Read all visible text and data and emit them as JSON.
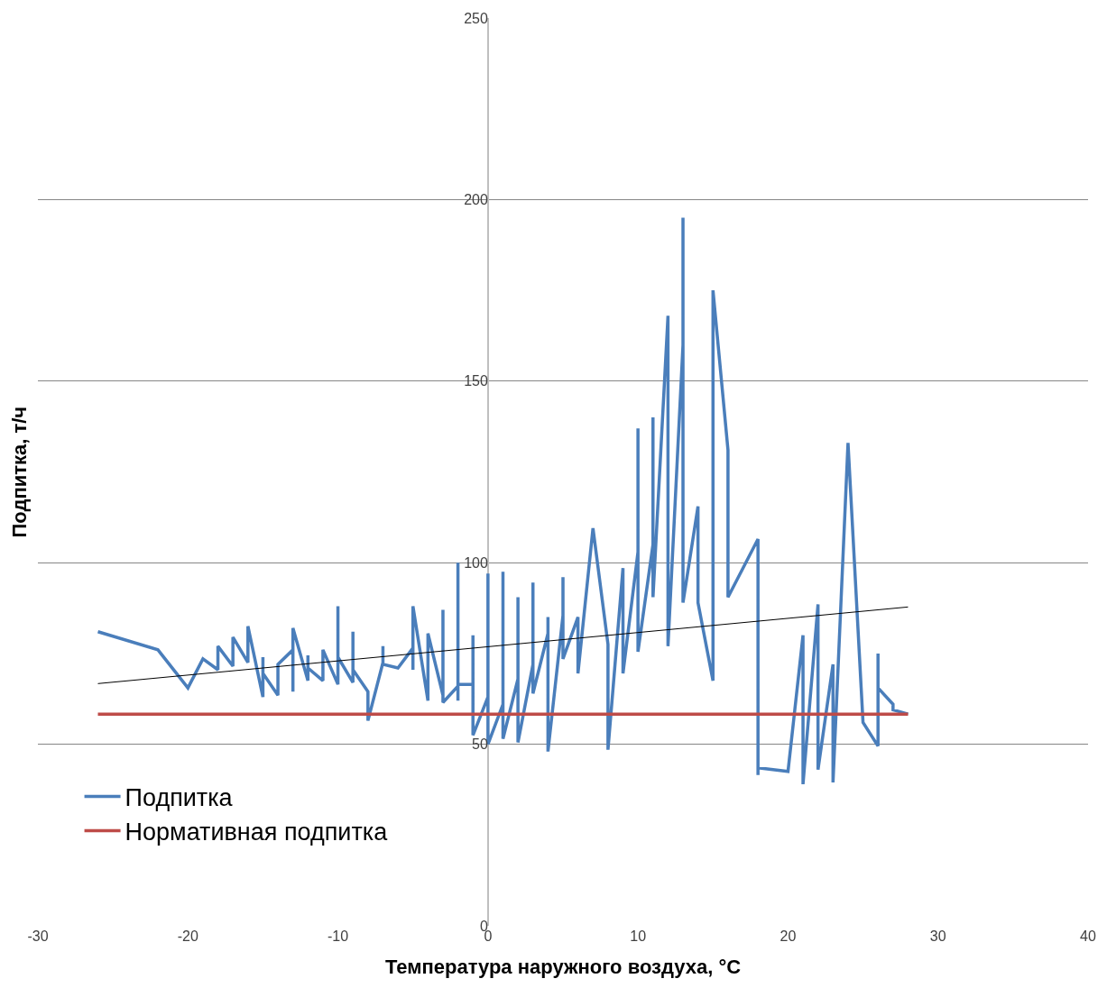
{
  "chart_data": {
    "type": "line",
    "xlabel": "Температура наружного воздуха, °C",
    "ylabel": "Подпитка, т/ч",
    "xlim": [
      -30,
      40
    ],
    "xticks": [
      -30,
      -20,
      -10,
      0,
      10,
      20,
      30,
      40
    ],
    "ylim": [
      0,
      250
    ],
    "yticks": [
      0,
      50,
      100,
      150,
      200,
      250
    ],
    "grid": "y",
    "legend": "bottom left",
    "marker": "none",
    "line_style": "solid",
    "series": [
      {
        "name": "Подпитка",
        "color": "#4a7ebb",
        "x": [
          -26,
          -22,
          -20,
          -19,
          -18,
          -18,
          -17,
          -17,
          -16,
          -16,
          -15,
          -15,
          -15,
          -14,
          -14,
          -13,
          -13,
          -13,
          -12,
          -12,
          -12,
          -11,
          -11,
          -10,
          -10,
          -10,
          -9,
          -9,
          -9,
          -8,
          -8,
          -7,
          -7,
          -7,
          -6,
          -5,
          -5,
          -5,
          -4,
          -4,
          -3,
          -3,
          -3,
          -2,
          -2,
          -2,
          -2,
          -1,
          -1,
          -1,
          0,
          0,
          0,
          1,
          1,
          1,
          2,
          2,
          2,
          3,
          3,
          3,
          4,
          4,
          4,
          5,
          5,
          5,
          6,
          6,
          7,
          8,
          8,
          9,
          9,
          10,
          10,
          10,
          11,
          11,
          11,
          12,
          12,
          13,
          13,
          13,
          14,
          14,
          15,
          15,
          16,
          16,
          16,
          18,
          18,
          18,
          20,
          21,
          21,
          22,
          22,
          23,
          23,
          24,
          25,
          26,
          26,
          26,
          27,
          27,
          28
        ],
        "values": [
          81,
          76,
          65.5,
          73.5,
          70.5,
          77,
          71.5,
          79.5,
          72.5,
          82.5,
          63,
          74,
          69.5,
          63.5,
          72,
          76,
          64.5,
          82,
          67.5,
          74.5,
          71,
          67.5,
          76,
          66.5,
          88,
          74,
          67,
          81,
          70.5,
          64.5,
          56.5,
          72.5,
          77,
          72,
          71,
          76.5,
          70.5,
          88,
          62,
          80.5,
          63.5,
          87,
          61.5,
          66,
          100,
          62,
          66.5,
          66.5,
          80,
          52.5,
          63,
          97,
          50,
          61,
          97.5,
          51.5,
          68,
          90.5,
          50.5,
          72,
          94.5,
          64,
          80.5,
          85,
          48,
          85.5,
          96,
          73.5,
          85,
          69.5,
          109.5,
          77.5,
          48.5,
          98.5,
          69.5,
          103,
          137,
          75.5,
          105,
          140,
          90.5,
          168,
          77,
          160,
          195,
          89,
          115.5,
          89,
          67.5,
          175,
          131,
          118,
          90.5,
          106.5,
          41.5,
          43.5,
          42.5,
          80,
          39,
          88.5,
          43,
          72,
          39.5,
          133,
          56,
          49.5,
          75,
          65.5,
          61,
          59.5,
          58.3
        ]
      },
      {
        "name": "Нормативная подпитка",
        "color": "#be4b48",
        "x": [
          -26,
          28
        ],
        "values": [
          58.3,
          58.3
        ]
      },
      {
        "color": "#000000",
        "x": [
          -26,
          28
        ],
        "values": [
          66.7,
          87.8
        ]
      }
    ]
  }
}
